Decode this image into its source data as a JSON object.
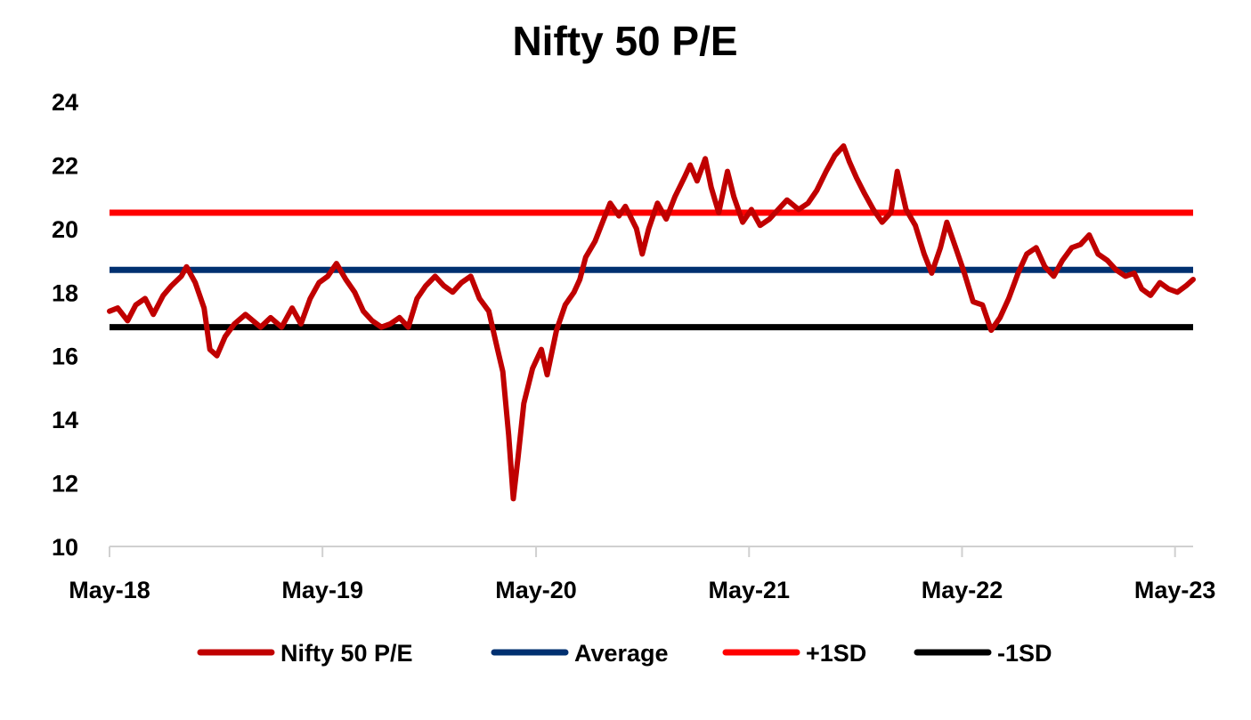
{
  "chart_data": {
    "type": "line",
    "title": "Nifty 50 P/E",
    "xlabel": "",
    "ylabel": "",
    "x_tick_labels": [
      "May-18",
      "May-19",
      "May-20",
      "May-21",
      "May-22",
      "May-23"
    ],
    "x_range": [
      "2018-05",
      "2023-06"
    ],
    "y_ticks": [
      "10",
      "12",
      "14",
      "16",
      "18",
      "20",
      "22",
      "24"
    ],
    "ylim": [
      10,
      24
    ],
    "grid": false,
    "legend_position": "bottom",
    "series": [
      {
        "name": "Nifty 50 P/E",
        "color": "#C00000",
        "points": [
          [
            "2018-05-01",
            17.4
          ],
          [
            "2018-05-15",
            17.5
          ],
          [
            "2018-06-01",
            17.1
          ],
          [
            "2018-06-15",
            17.6
          ],
          [
            "2018-07-01",
            17.8
          ],
          [
            "2018-07-15",
            17.3
          ],
          [
            "2018-08-01",
            17.9
          ],
          [
            "2018-08-15",
            18.2
          ],
          [
            "2018-09-01",
            18.5
          ],
          [
            "2018-09-10",
            18.8
          ],
          [
            "2018-09-25",
            18.3
          ],
          [
            "2018-10-10",
            17.5
          ],
          [
            "2018-10-20",
            16.2
          ],
          [
            "2018-11-01",
            16.0
          ],
          [
            "2018-11-15",
            16.6
          ],
          [
            "2018-12-01",
            17.0
          ],
          [
            "2018-12-20",
            17.3
          ],
          [
            "2019-01-15",
            16.9
          ],
          [
            "2019-02-01",
            17.2
          ],
          [
            "2019-02-20",
            16.9
          ],
          [
            "2019-03-10",
            17.5
          ],
          [
            "2019-03-25",
            17.0
          ],
          [
            "2019-04-10",
            17.8
          ],
          [
            "2019-04-25",
            18.3
          ],
          [
            "2019-05-10",
            18.5
          ],
          [
            "2019-05-25",
            18.9
          ],
          [
            "2019-06-10",
            18.4
          ],
          [
            "2019-06-25",
            18.0
          ],
          [
            "2019-07-10",
            17.4
          ],
          [
            "2019-07-25",
            17.1
          ],
          [
            "2019-08-10",
            16.9
          ],
          [
            "2019-08-25",
            17.0
          ],
          [
            "2019-09-10",
            17.2
          ],
          [
            "2019-09-25",
            16.9
          ],
          [
            "2019-10-10",
            17.8
          ],
          [
            "2019-10-25",
            18.2
          ],
          [
            "2019-11-10",
            18.5
          ],
          [
            "2019-11-25",
            18.2
          ],
          [
            "2019-12-10",
            18.0
          ],
          [
            "2019-12-25",
            18.3
          ],
          [
            "2020-01-10",
            18.5
          ],
          [
            "2020-01-25",
            17.8
          ],
          [
            "2020-02-10",
            17.4
          ],
          [
            "2020-02-25",
            16.2
          ],
          [
            "2020-03-05",
            15.5
          ],
          [
            "2020-03-15",
            13.5
          ],
          [
            "2020-03-23",
            11.5
          ],
          [
            "2020-03-31",
            12.8
          ],
          [
            "2020-04-10",
            14.5
          ],
          [
            "2020-04-25",
            15.6
          ],
          [
            "2020-05-10",
            16.2
          ],
          [
            "2020-05-20",
            15.4
          ],
          [
            "2020-06-05",
            16.8
          ],
          [
            "2020-06-20",
            17.6
          ],
          [
            "2020-07-05",
            18.0
          ],
          [
            "2020-07-15",
            18.4
          ],
          [
            "2020-07-25",
            19.1
          ],
          [
            "2020-08-10",
            19.6
          ],
          [
            "2020-08-25",
            20.3
          ],
          [
            "2020-09-05",
            20.8
          ],
          [
            "2020-09-20",
            20.4
          ],
          [
            "2020-10-01",
            20.7
          ],
          [
            "2020-10-20",
            20.0
          ],
          [
            "2020-10-30",
            19.2
          ],
          [
            "2020-11-10",
            20.0
          ],
          [
            "2020-11-25",
            20.8
          ],
          [
            "2020-12-10",
            20.3
          ],
          [
            "2020-12-25",
            21.0
          ],
          [
            "2021-01-10",
            21.6
          ],
          [
            "2021-01-20",
            22.0
          ],
          [
            "2021-02-01",
            21.5
          ],
          [
            "2021-02-15",
            22.2
          ],
          [
            "2021-02-25",
            21.3
          ],
          [
            "2021-03-10",
            20.5
          ],
          [
            "2021-03-25",
            21.8
          ],
          [
            "2021-04-05",
            21.0
          ],
          [
            "2021-04-20",
            20.2
          ],
          [
            "2021-05-05",
            20.6
          ],
          [
            "2021-05-20",
            20.1
          ],
          [
            "2021-06-05",
            20.3
          ],
          [
            "2021-06-20",
            20.6
          ],
          [
            "2021-07-05",
            20.9
          ],
          [
            "2021-07-25",
            20.6
          ],
          [
            "2021-08-10",
            20.8
          ],
          [
            "2021-08-25",
            21.2
          ],
          [
            "2021-09-10",
            21.8
          ],
          [
            "2021-09-25",
            22.3
          ],
          [
            "2021-10-10",
            22.6
          ],
          [
            "2021-10-20",
            22.1
          ],
          [
            "2021-11-01",
            21.6
          ],
          [
            "2021-11-15",
            21.1
          ],
          [
            "2021-11-30",
            20.6
          ],
          [
            "2021-12-15",
            20.2
          ],
          [
            "2021-12-30",
            20.5
          ],
          [
            "2022-01-10",
            21.8
          ],
          [
            "2022-01-25",
            20.6
          ],
          [
            "2022-02-10",
            20.1
          ],
          [
            "2022-02-25",
            19.2
          ],
          [
            "2022-03-10",
            18.6
          ],
          [
            "2022-03-25",
            19.4
          ],
          [
            "2022-04-05",
            20.2
          ],
          [
            "2022-04-20",
            19.4
          ],
          [
            "2022-05-05",
            18.6
          ],
          [
            "2022-05-20",
            17.7
          ],
          [
            "2022-06-05",
            17.6
          ],
          [
            "2022-06-20",
            16.8
          ],
          [
            "2022-07-05",
            17.2
          ],
          [
            "2022-07-20",
            17.8
          ],
          [
            "2022-08-05",
            18.6
          ],
          [
            "2022-08-20",
            19.2
          ],
          [
            "2022-09-05",
            19.4
          ],
          [
            "2022-09-20",
            18.8
          ],
          [
            "2022-10-05",
            18.5
          ],
          [
            "2022-10-20",
            19.0
          ],
          [
            "2022-11-05",
            19.4
          ],
          [
            "2022-11-20",
            19.5
          ],
          [
            "2022-12-05",
            19.8
          ],
          [
            "2022-12-20",
            19.2
          ],
          [
            "2023-01-05",
            19.0
          ],
          [
            "2023-01-20",
            18.7
          ],
          [
            "2023-02-05",
            18.5
          ],
          [
            "2023-02-20",
            18.6
          ],
          [
            "2023-03-05",
            18.1
          ],
          [
            "2023-03-20",
            17.9
          ],
          [
            "2023-04-05",
            18.3
          ],
          [
            "2023-04-20",
            18.1
          ],
          [
            "2023-05-05",
            18.0
          ],
          [
            "2023-05-20",
            18.2
          ],
          [
            "2023-06-01",
            18.4
          ]
        ]
      },
      {
        "name": "Average",
        "color": "#003070",
        "value": 18.7
      },
      {
        "name": "+1SD",
        "color": "#FF0000",
        "value": 20.5
      },
      {
        "name": "-1SD",
        "color": "#000000",
        "value": 16.9
      }
    ]
  }
}
